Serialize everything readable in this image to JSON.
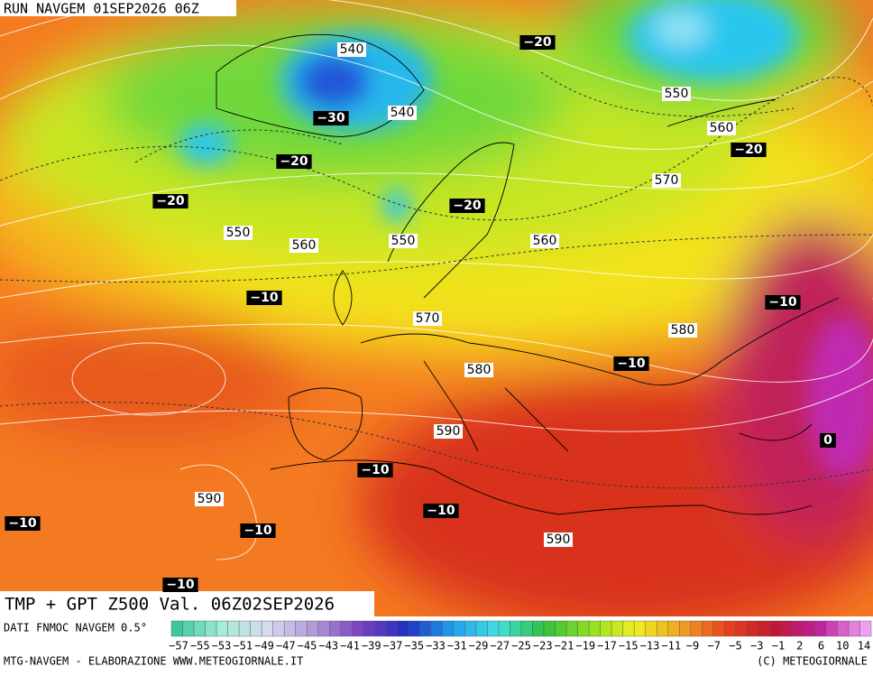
{
  "header": {
    "run": "RUN NAVGEM 01SEP2026 06Z"
  },
  "map": {
    "height_labels": [
      "540",
      "540",
      "550",
      "560",
      "570",
      "550",
      "560",
      "550",
      "560",
      "570",
      "580",
      "580",
      "590",
      "590",
      "590"
    ],
    "temperature_labels": [
      "−20",
      "−30",
      "−20",
      "−20",
      "−20",
      "−20",
      "−10",
      "−10",
      "−10",
      "−10",
      "−10",
      "−10",
      "−10",
      "−10",
      "0"
    ]
  },
  "footer": {
    "product": "TMP + GPT Z500 Val. 06Z02SEP2026",
    "source": "DATI FNMOC NAVGEM 0.5°",
    "colorbar_labels": [
      "−57",
      "−55",
      "−53",
      "−51",
      "−49",
      "−47",
      "−45",
      "−43",
      "−41",
      "−39",
      "−37",
      "−35",
      "−33",
      "−31",
      "−29",
      "−27",
      "−25",
      "−23",
      "−21",
      "−19",
      "−17",
      "−15",
      "−13",
      "−11",
      "−9",
      "−7",
      "−5",
      "−3",
      "−1",
      "2",
      "6",
      "10",
      "14"
    ],
    "credit": "MTG-NAVGEM - ELABORAZIONE WWW.METEOGIORNALE.IT",
    "copyright": "(C) METEOGIORNALE"
  }
}
